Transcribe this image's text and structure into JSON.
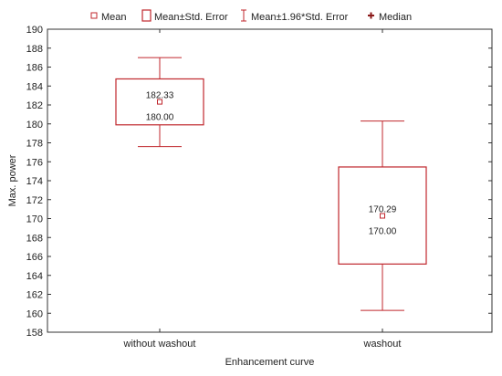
{
  "chart_data": {
    "type": "box",
    "xlabel": "Enhancement curve",
    "ylabel": "Max. power",
    "ylim": [
      158,
      190
    ],
    "yticks": [
      158,
      160,
      162,
      164,
      166,
      168,
      170,
      172,
      174,
      176,
      178,
      180,
      182,
      184,
      186,
      188,
      190
    ],
    "grid": false,
    "legend_position": "top",
    "legend": [
      {
        "label": "Mean",
        "symbol": "square-marker"
      },
      {
        "label": "Mean±Std. Error",
        "symbol": "box"
      },
      {
        "label": "Mean±1.96*Std. Error",
        "symbol": "whisker"
      },
      {
        "label": "Median",
        "symbol": "plus-marker"
      }
    ],
    "categories": [
      "without washout",
      "washout"
    ],
    "groups": [
      {
        "category": "without washout",
        "mean": 182.33,
        "mean_label": "182.33",
        "median": 180.0,
        "median_label": "180.00",
        "se_low": 179.9,
        "se_high": 184.75,
        "ci_low": 177.6,
        "ci_high": 187.0
      },
      {
        "category": "washout",
        "mean": 170.29,
        "mean_label": "170.29",
        "median": 170.0,
        "median_label": "170.00",
        "se_low": 165.2,
        "se_high": 175.45,
        "ci_low": 160.3,
        "ci_high": 180.3
      }
    ],
    "colors": {
      "box": "#c0272d",
      "mean": "#c0272d",
      "median": "#8b1a1a",
      "axis": "#333333",
      "text": "#222222"
    }
  }
}
